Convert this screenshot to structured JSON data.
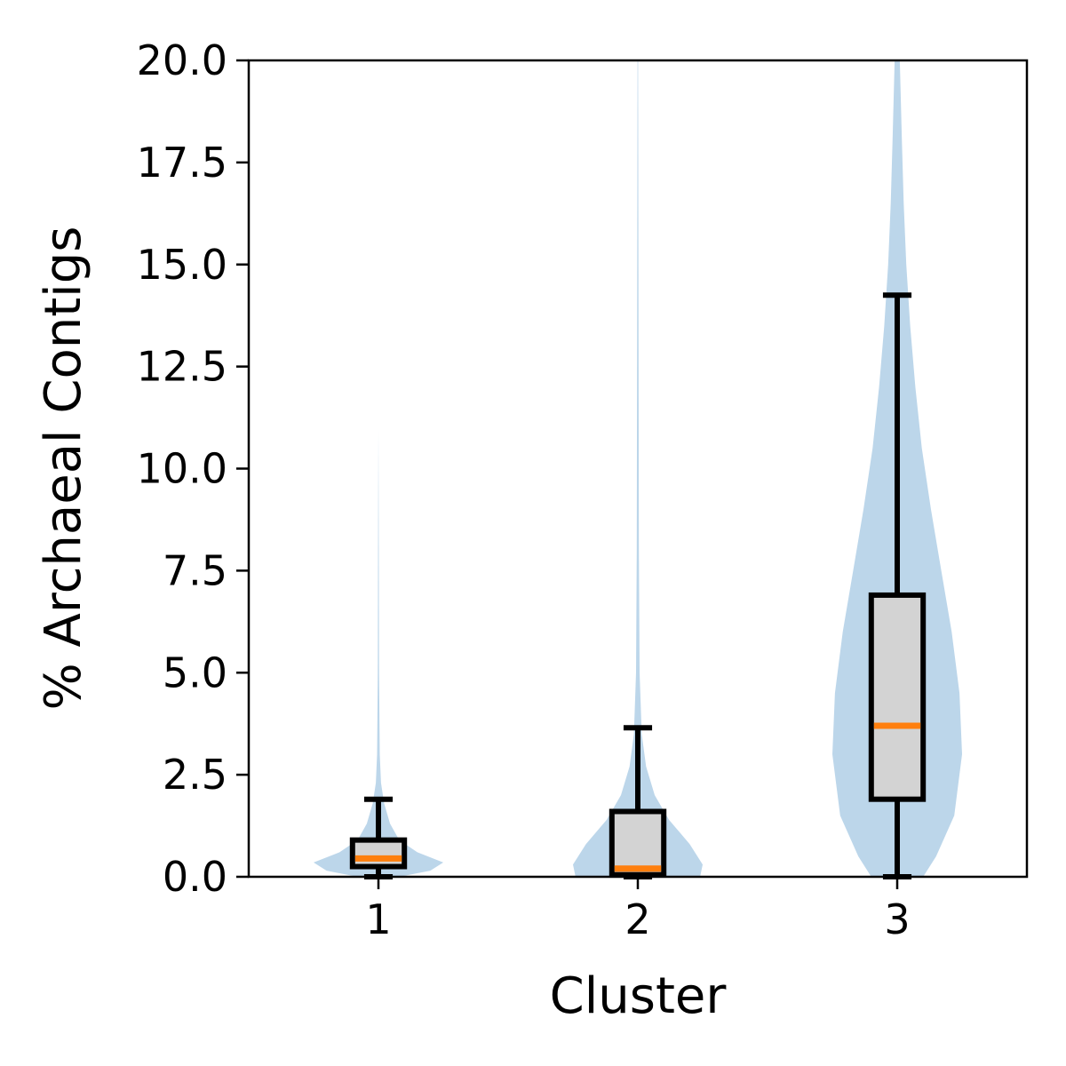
{
  "chart_data": {
    "type": "violin-box",
    "title": "",
    "xlabel": "Cluster",
    "ylabel": "% Archaeal Contigs",
    "ylim": [
      0,
      20
    ],
    "yticks": [
      "0.0",
      "2.5",
      "5.0",
      "7.5",
      "10.0",
      "12.5",
      "15.0",
      "17.5",
      "20.0"
    ],
    "categories": [
      "1",
      "2",
      "3"
    ],
    "grid": false,
    "colors": {
      "violin": "#bcd6ea",
      "box_fill": "#d3d3d3",
      "box_edge": "#000000",
      "median": "#ff7f0e"
    },
    "boxes": [
      {
        "category": "1",
        "whisker_low": 0.0,
        "q1": 0.25,
        "median": 0.45,
        "q3": 0.9,
        "whisker_high": 1.9
      },
      {
        "category": "2",
        "whisker_low": 0.0,
        "q1": 0.05,
        "median": 0.2,
        "q3": 1.6,
        "whisker_high": 3.65
      },
      {
        "category": "3",
        "whisker_low": 0.0,
        "q1": 1.9,
        "median": 3.7,
        "q3": 6.9,
        "whisker_high": 14.25
      }
    ],
    "violins": [
      {
        "category": "1",
        "y": [
          0.0,
          0.15,
          0.35,
          0.6,
          0.9,
          1.3,
          1.8,
          2.3,
          3.0,
          5.0,
          8.0,
          11.0
        ],
        "halfwidth": [
          0.08,
          0.2,
          0.25,
          0.15,
          0.08,
          0.045,
          0.022,
          0.01,
          0.005,
          0.0025,
          0.0015,
          0.0
        ]
      },
      {
        "category": "2",
        "y": [
          0.0,
          0.3,
          0.8,
          1.4,
          2.0,
          2.7,
          3.5,
          5.0,
          8.0,
          12.0,
          16.0,
          20.0
        ],
        "halfwidth": [
          0.24,
          0.25,
          0.2,
          0.12,
          0.065,
          0.032,
          0.015,
          0.007,
          0.004,
          0.003,
          0.002,
          0.001
        ]
      },
      {
        "category": "3",
        "y": [
          0.0,
          0.5,
          1.5,
          3.0,
          4.5,
          6.0,
          7.5,
          9.0,
          10.5,
          12.0,
          13.5,
          15.0,
          16.5,
          18.0,
          19.5,
          20.0
        ],
        "halfwidth": [
          0.1,
          0.15,
          0.22,
          0.25,
          0.24,
          0.21,
          0.17,
          0.13,
          0.095,
          0.07,
          0.05,
          0.035,
          0.025,
          0.018,
          0.012,
          0.01
        ]
      }
    ]
  }
}
